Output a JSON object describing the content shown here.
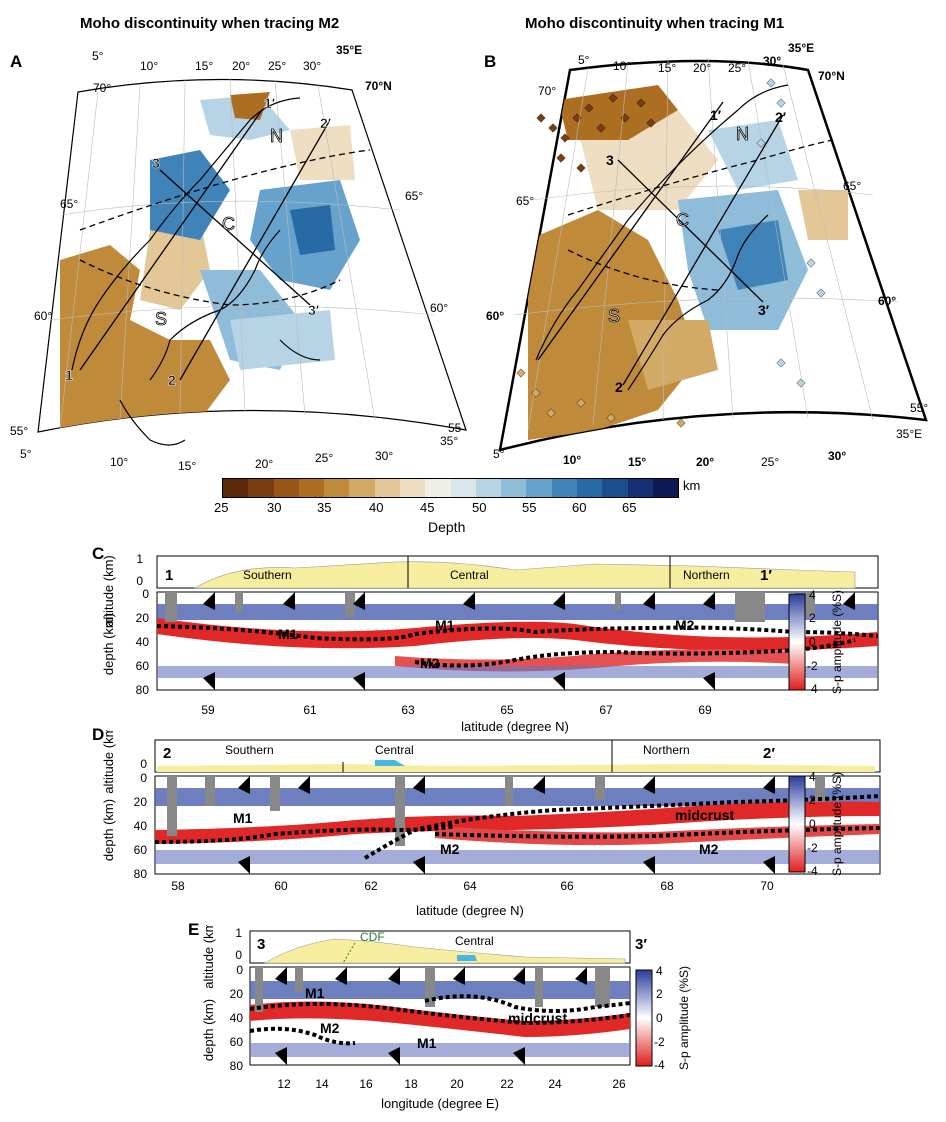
{
  "titles": {
    "left": "Moho discontinuity when tracing M2",
    "right": "Moho discontinuity when tracing M1"
  },
  "panels": {
    "A": "A",
    "B": "B",
    "C": "C",
    "D": "D",
    "E": "E"
  },
  "maps": {
    "lon_top": [
      "5°",
      "10°",
      "15°",
      "20°",
      "25°",
      "30°",
      "35°E"
    ],
    "lon_bottom": [
      "5°",
      "10°",
      "15°",
      "20°",
      "25°",
      "30°",
      "35°"
    ],
    "lat_left": [
      "70°",
      "65°",
      "60°",
      "55°"
    ],
    "lat_right_a": [
      "70°N",
      "65°",
      "60°",
      "55"
    ],
    "lat_right_b": [
      "70°N",
      "65°",
      "60°",
      "55°"
    ],
    "bottom_right_b": "35°E",
    "regions": [
      "N",
      "C",
      "S"
    ],
    "profile_ends": {
      "p1": "1",
      "p1p": "1′",
      "p2": "2",
      "p2p": "2′",
      "p3": "3",
      "p3p": "3′"
    }
  },
  "colorbar": {
    "ticks": [
      "25",
      "30",
      "35",
      "40",
      "45",
      "50",
      "55",
      "60",
      "65"
    ],
    "unit": "km",
    "label": "Depth",
    "colors": [
      "#5c2808",
      "#7a3d12",
      "#955618",
      "#ac6f22",
      "#c08a3b",
      "#d2a965",
      "#e3c797",
      "#eeddc0",
      "#efefe9",
      "#d8e6ee",
      "#b6d4e6",
      "#8fbcd9",
      "#66a2cb",
      "#3f83b9",
      "#276aa6",
      "#1c4e8f",
      "#152f72",
      "#0e1a55"
    ]
  },
  "sections": {
    "C": {
      "start": "1",
      "end": "1′",
      "regions": [
        "Southern",
        "Central",
        "Northern"
      ],
      "altitude_label": "altitude (km)",
      "alt_ticks": [
        "1",
        "0"
      ],
      "depth_label": "depth (km)",
      "depth_ticks": [
        "0",
        "20",
        "40",
        "60",
        "80"
      ],
      "x_ticks": [
        "59",
        "61",
        "63",
        "65",
        "67",
        "69"
      ],
      "x_label": "latitude (degree N)",
      "annotations": [
        "M1",
        "M1",
        "M2",
        "M2"
      ],
      "cbar_label": "S-p amplitude (%S)",
      "cbar_ticks": [
        "4",
        "2",
        "0",
        "-2",
        "-4"
      ]
    },
    "D": {
      "start": "2",
      "end": "2′",
      "regions": [
        "Southern",
        "Central",
        "Northern"
      ],
      "altitude_label": "altitude (km)",
      "alt_ticks": [
        "0"
      ],
      "depth_label": "depth (km)",
      "depth_ticks": [
        "0",
        "20",
        "40",
        "60",
        "80"
      ],
      "x_ticks": [
        "58",
        "60",
        "62",
        "64",
        "66",
        "68",
        "70"
      ],
      "x_label": "latitude (degree N)",
      "annotations": [
        "M1",
        "M2",
        "midcrust",
        "M2"
      ],
      "cbar_label": "S-p amplitude (%S)",
      "cbar_ticks": [
        "4",
        "2",
        "0",
        "-2",
        "-4"
      ]
    },
    "E": {
      "start": "3",
      "end": "3′",
      "regions": [
        "CDF",
        "Central"
      ],
      "altitude_label": "altitude (km)",
      "alt_ticks": [
        "1",
        "0"
      ],
      "depth_label": "depth (km)",
      "depth_ticks": [
        "0",
        "20",
        "40",
        "60",
        "80"
      ],
      "x_ticks": [
        "12",
        "14",
        "16",
        "18",
        "20",
        "22",
        "24",
        "26"
      ],
      "x_label": "longitude (degree E)",
      "annotations": [
        "M1",
        "M2",
        "M1",
        "midcrust"
      ],
      "cbar_label": "S-p amplitude (%S)",
      "cbar_ticks": [
        "4",
        "2",
        "0",
        "-2",
        "-4"
      ]
    }
  }
}
